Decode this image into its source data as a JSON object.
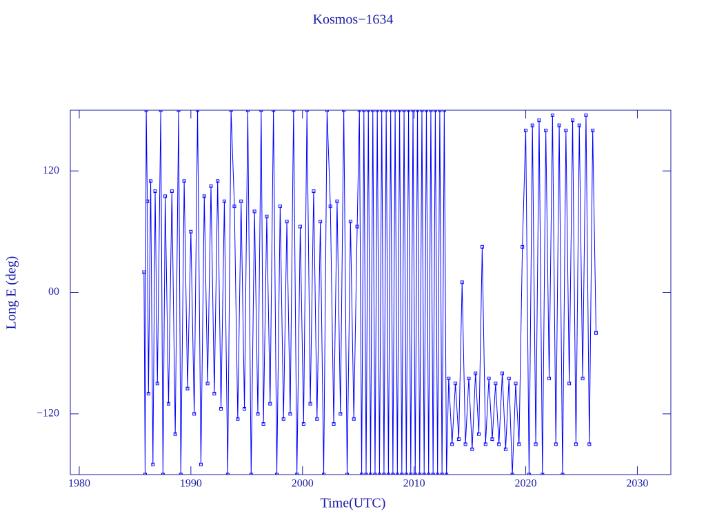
{
  "chart_data": {
    "type": "line",
    "title": "Kosmos−1634",
    "x_label": "Time(UTC)",
    "y_label": "Long E (deg)",
    "color": "#0000ff",
    "xlim": [
      1979.2,
      2033
    ],
    "ylim": [
      -180,
      180
    ],
    "xticks": [
      1980,
      1990,
      2000,
      2010,
      2020,
      2030
    ],
    "yticks": [
      {
        "value": -120,
        "label": "−120"
      },
      {
        "value": 0,
        "label": "00"
      },
      120
    ],
    "x": [
      1985.8,
      1985.9,
      1986.0,
      1986.1,
      1986.2,
      1986.4,
      1986.6,
      1986.8,
      1987.0,
      1987.3,
      1987.5,
      1987.7,
      1988.0,
      1988.3,
      1988.6,
      1988.9,
      1989.1,
      1989.4,
      1989.7,
      1990.0,
      1990.3,
      1990.6,
      1990.9,
      1991.2,
      1991.5,
      1991.8,
      1992.1,
      1992.4,
      1992.7,
      1993.0,
      1993.3,
      1993.6,
      1993.9,
      1994.2,
      1994.5,
      1994.8,
      1995.1,
      1995.4,
      1995.7,
      1996.0,
      1996.3,
      1996.5,
      1996.8,
      1997.1,
      1997.4,
      1997.7,
      1998.0,
      1998.3,
      1998.6,
      1998.9,
      1999.2,
      1999.5,
      1999.8,
      2000.1,
      2000.4,
      2000.7,
      2001.0,
      2001.3,
      2001.6,
      2001.9,
      2002.2,
      2002.5,
      2002.8,
      2003.1,
      2003.4,
      2003.7,
      2004.0,
      2004.3,
      2004.6,
      2004.9,
      2005.1,
      2005.3,
      2005.5,
      2005.7,
      2005.9,
      2006.1,
      2006.3,
      2006.5,
      2006.7,
      2006.9,
      2007.1,
      2007.3,
      2007.5,
      2007.7,
      2007.9,
      2008.1,
      2008.3,
      2008.5,
      2008.7,
      2008.9,
      2009.1,
      2009.3,
      2009.5,
      2009.7,
      2009.9,
      2010.1,
      2010.3,
      2010.5,
      2010.7,
      2010.9,
      2011.1,
      2011.3,
      2011.5,
      2011.7,
      2011.9,
      2012.1,
      2012.3,
      2012.5,
      2012.7,
      2012.9,
      2013.1,
      2013.4,
      2013.7,
      2014.0,
      2014.3,
      2014.6,
      2014.9,
      2015.2,
      2015.5,
      2015.8,
      2016.1,
      2016.4,
      2016.7,
      2017.0,
      2017.3,
      2017.6,
      2017.9,
      2018.2,
      2018.5,
      2018.8,
      2019.1,
      2019.4,
      2019.7,
      2020.0,
      2020.3,
      2020.6,
      2020.9,
      2021.2,
      2021.5,
      2021.8,
      2022.1,
      2022.4,
      2022.7,
      2023.0,
      2023.3,
      2023.6,
      2023.9,
      2024.2,
      2024.5,
      2024.8,
      2025.1,
      2025.4,
      2025.7,
      2026.0,
      2026.3
    ],
    "values": [
      20,
      -180,
      180,
      90,
      -100,
      110,
      -170,
      100,
      -90,
      180,
      -180,
      95,
      -110,
      100,
      -140,
      180,
      -180,
      110,
      -95,
      60,
      -120,
      180,
      -170,
      95,
      -90,
      105,
      -100,
      110,
      -115,
      90,
      -180,
      180,
      85,
      -125,
      90,
      -115,
      180,
      -180,
      80,
      -120,
      180,
      -130,
      75,
      -110,
      180,
      -180,
      85,
      -125,
      70,
      -120,
      180,
      -180,
      65,
      -130,
      180,
      -110,
      100,
      -125,
      70,
      -180,
      180,
      85,
      -130,
      90,
      -120,
      180,
      -180,
      70,
      -125,
      65,
      180,
      -180,
      180,
      -180,
      180,
      -180,
      180,
      -180,
      180,
      -180,
      180,
      -180,
      180,
      -180,
      180,
      -180,
      180,
      -180,
      180,
      -180,
      180,
      -180,
      180,
      -180,
      180,
      -180,
      180,
      -180,
      180,
      -180,
      180,
      -180,
      180,
      -180,
      180,
      -180,
      180,
      -180,
      180,
      -180,
      -85,
      -150,
      -90,
      -145,
      10,
      -150,
      -85,
      -155,
      -80,
      -140,
      45,
      -150,
      -85,
      -145,
      -90,
      -150,
      -80,
      -155,
      -85,
      -180,
      -90,
      -150,
      45,
      160,
      -180,
      165,
      -150,
      170,
      -180,
      160,
      -85,
      175,
      -150,
      165,
      -180,
      160,
      -90,
      170,
      -150,
      165,
      -85,
      175,
      -150,
      160,
      -40
    ]
  }
}
